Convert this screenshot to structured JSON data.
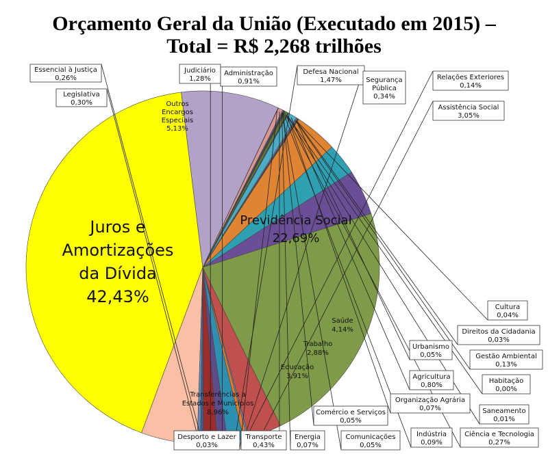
{
  "chart_data": {
    "type": "pie",
    "title_line1": "Orçamento Geral da União (Executado em 2015) –",
    "title_line2": "Total = R$ 2,268 trilhões",
    "slices": [
      {
        "name": "Juros e Amortizações da Dívida",
        "label_lines": [
          "Juros e",
          "Amortizações",
          "da Dívida",
          "42,43%"
        ],
        "value": 42.43,
        "color": "#ffff00"
      },
      {
        "name": "Outros Encargos Especiais",
        "label_lines": [
          "Outros",
          "Encargos",
          "Especiais",
          "5,13%"
        ],
        "value": 5.13,
        "color": "#fac0a6"
      },
      {
        "name": "Legislativa",
        "label_lines": [
          "Legislativa",
          "0,30%"
        ],
        "value": 0.3,
        "color": "#6688bb"
      },
      {
        "name": "Essencial à Justiça",
        "label_lines": [
          "Essencial à Justiça",
          "0,26%"
        ],
        "value": 0.26,
        "color": "#3d5f8e"
      },
      {
        "name": "Judiciário",
        "label_lines": [
          "Judiciário",
          "1,28%"
        ],
        "value": 1.28,
        "color": "#9b2d2d"
      },
      {
        "name": "Administração",
        "label_lines": [
          "Administração",
          "0,91%"
        ],
        "value": 0.91,
        "color": "#5e4b8a"
      },
      {
        "name": "Defesa Nacional",
        "label_lines": [
          "Defesa Nacional",
          "1,47%"
        ],
        "value": 1.47,
        "color": "#2e8fb0"
      },
      {
        "name": "Segurança Pública",
        "label_lines": [
          "Segurança",
          "Pública",
          "0,34%"
        ],
        "value": 0.34,
        "color": "#e07a28"
      },
      {
        "name": "Relações Exteriores",
        "label_lines": [
          "Relações Exteriores",
          "0,14%"
        ],
        "value": 0.14,
        "color": "#6b8fc4"
      },
      {
        "name": "Assistência Social",
        "label_lines": [
          "Assistência Social",
          "3,05%"
        ],
        "value": 3.05,
        "color": "#c0504d"
      },
      {
        "name": "Previdência Social",
        "label_lines": [
          "Previdência Social",
          "22,69%"
        ],
        "value": 22.69,
        "color": "#7f9a48"
      },
      {
        "name": "Saúde",
        "label_lines": [
          "Saúde",
          "4,14%"
        ],
        "value": 4.14,
        "color": "#6a4f96"
      },
      {
        "name": "Trabalho",
        "label_lines": [
          "Trabalho",
          "2,88%"
        ],
        "value": 2.88,
        "color": "#2f9fb2"
      },
      {
        "name": "Educação",
        "label_lines": [
          "Educação",
          "3,91%"
        ],
        "value": 3.91,
        "color": "#de8433"
      },
      {
        "name": "Cultura",
        "label_lines": [
          "Cultura",
          "0,04%"
        ],
        "value": 0.04,
        "color": "#8fa9d6"
      },
      {
        "name": "Direitos da Cidadania",
        "label_lines": [
          "Direitos da Cidadania",
          "0,03%"
        ],
        "value": 0.03,
        "color": "#c0504d"
      },
      {
        "name": "Urbanismo",
        "label_lines": [
          "Urbanismo",
          "0,05%"
        ],
        "value": 0.05,
        "color": "#9bbb59"
      },
      {
        "name": "Gestão Ambiental",
        "label_lines": [
          "Gestão Ambiental",
          "0,13%"
        ],
        "value": 0.13,
        "color": "#8064a2"
      },
      {
        "name": "Agricultura",
        "label_lines": [
          "Agricultura",
          "0,80%"
        ],
        "value": 0.8,
        "color": "#4bacc6"
      },
      {
        "name": "Habitação",
        "label_lines": [
          "Habitação",
          "0,00%"
        ],
        "value": 0.0,
        "color": "#f79646"
      },
      {
        "name": "Organização Agrária",
        "label_lines": [
          "Organização Agrária",
          "0,07%"
        ],
        "value": 0.07,
        "color": "#2c4d75"
      },
      {
        "name": "Saneamento",
        "label_lines": [
          "Saneamento",
          "0,01%"
        ],
        "value": 0.01,
        "color": "#772c2a"
      },
      {
        "name": "Ciência e Tecnologia",
        "label_lines": [
          "Ciência e Tecnologia",
          "0,27%"
        ],
        "value": 0.27,
        "color": "#5f7530"
      },
      {
        "name": "Indústria",
        "label_lines": [
          "Indústria",
          "0,09%"
        ],
        "value": 0.09,
        "color": "#4d3b62"
      },
      {
        "name": "Comércio e Serviços",
        "label_lines": [
          "Comércio e Serviços",
          "0,05%"
        ],
        "value": 0.05,
        "color": "#276a7c"
      },
      {
        "name": "Comunicações",
        "label_lines": [
          "Comunicações",
          "0,05%"
        ],
        "value": 0.05,
        "color": "#b65708"
      },
      {
        "name": "Energia",
        "label_lines": [
          "Energia",
          "0,07%"
        ],
        "value": 0.07,
        "color": "#729aca"
      },
      {
        "name": "Transporte",
        "label_lines": [
          "Transporte",
          "0,43%"
        ],
        "value": 0.43,
        "color": "#d99694"
      },
      {
        "name": "Desporto e Lazer",
        "label_lines": [
          "Desporto e Lazer",
          "0,03%"
        ],
        "value": 0.03,
        "color": "#c3d69b"
      },
      {
        "name": "Transferências a Estados e Municípios",
        "label_lines": [
          "Transferências a",
          "Estados e Municípios",
          "8,96%"
        ],
        "value": 8.96,
        "color": "#b3a2c7"
      }
    ]
  }
}
